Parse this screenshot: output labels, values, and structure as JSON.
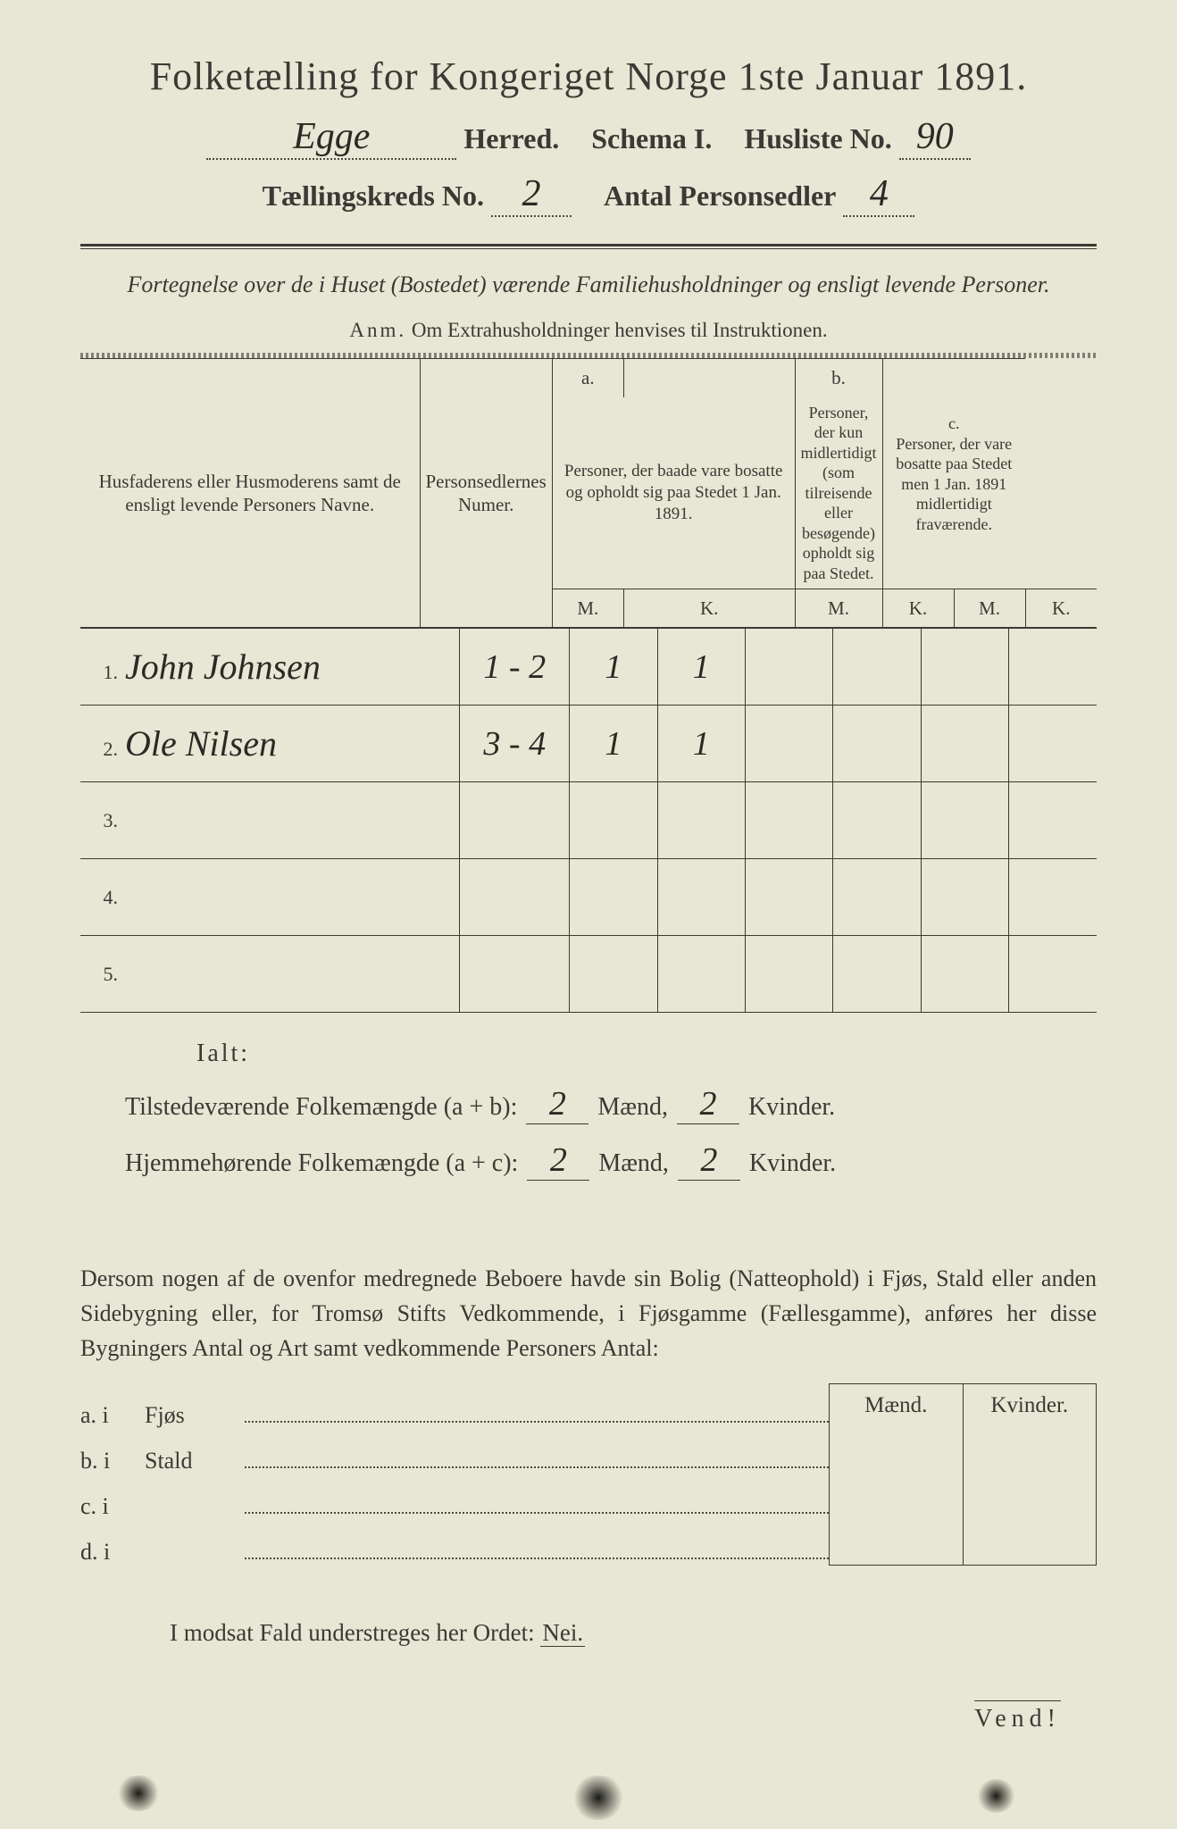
{
  "colors": {
    "paper_bg": "#e8e6d4",
    "text": "#3a3a35",
    "handwriting": "#2a2a25",
    "outer_bg": "#3a3a3a"
  },
  "header": {
    "title": "Folketælling for Kongeriget Norge 1ste Januar 1891.",
    "herred_value": "Egge",
    "herred_label": "Herred.",
    "schema_label": "Schema I.",
    "husliste_label": "Husliste No.",
    "husliste_value": "90",
    "kreds_label": "Tællingskreds No.",
    "kreds_value": "2",
    "antal_label": "Antal Personsedler",
    "antal_value": "4"
  },
  "subtitle": "Fortegnelse over de i Huset (Bostedet) værende Familiehusholdninger og ensligt levende Personer.",
  "anm": {
    "prefix": "Anm.",
    "text": "Om Extrahusholdninger henvises til Instruktionen."
  },
  "table": {
    "col1": "Husfaderens eller Husmoderens samt de ensligt levende Personers Navne.",
    "col2": "Personsedlernes Numer.",
    "col_a_head": "a.",
    "col_a": "Personer, der baade vare bosatte og opholdt sig paa Stedet 1 Jan. 1891.",
    "col_b_head": "b.",
    "col_b": "Personer, der kun midlertidigt (som tilreisende eller besøgende) opholdt sig paa Stedet.",
    "col_c_head": "c.",
    "col_c": "Personer, der vare bosatte paa Stedet men 1 Jan. 1891 midlertidigt fraværende.",
    "m": "M.",
    "k": "K.",
    "rows": [
      {
        "n": "1.",
        "name": "John Johnsen",
        "num": "1 - 2",
        "am": "1",
        "ak": "1",
        "bm": "",
        "bk": "",
        "cm": "",
        "ck": ""
      },
      {
        "n": "2.",
        "name": "Ole Nilsen",
        "num": "3 - 4",
        "am": "1",
        "ak": "1",
        "bm": "",
        "bk": "",
        "cm": "",
        "ck": ""
      },
      {
        "n": "3.",
        "name": "",
        "num": "",
        "am": "",
        "ak": "",
        "bm": "",
        "bk": "",
        "cm": "",
        "ck": ""
      },
      {
        "n": "4.",
        "name": "",
        "num": "",
        "am": "",
        "ak": "",
        "bm": "",
        "bk": "",
        "cm": "",
        "ck": ""
      },
      {
        "n": "5.",
        "name": "",
        "num": "",
        "am": "",
        "ak": "",
        "bm": "",
        "bk": "",
        "cm": "",
        "ck": ""
      }
    ]
  },
  "summary": {
    "ialt": "Ialt:",
    "line1_label": "Tilstedeværende Folkemængde (a + b):",
    "line2_label": "Hjemmehørende Folkemængde (a + c):",
    "maend": "Mænd,",
    "kvinder": "Kvinder.",
    "v1m": "2",
    "v1k": "2",
    "v2m": "2",
    "v2k": "2"
  },
  "paragraph": "Dersom nogen af de ovenfor medregnede Beboere havde sin Bolig (Natteophold) i Fjøs, Stald eller anden Sidebygning eller, for Tromsø Stifts Vedkommende, i Fjøsgamme (Fællesgamme), anføres her disse Bygningers Antal og Art samt vedkommende Personers Antal:",
  "side": {
    "maend": "Mænd.",
    "kvinder": "Kvinder.",
    "rows": [
      {
        "label": "a.  i",
        "name": "Fjøs"
      },
      {
        "label": "b.  i",
        "name": "Stald"
      },
      {
        "label": "c.  i",
        "name": ""
      },
      {
        "label": "d.  i",
        "name": ""
      }
    ]
  },
  "modsat": {
    "text": "I modsat Fald understreges her Ordet:",
    "nei": "Nei."
  },
  "vend": "Vend!"
}
